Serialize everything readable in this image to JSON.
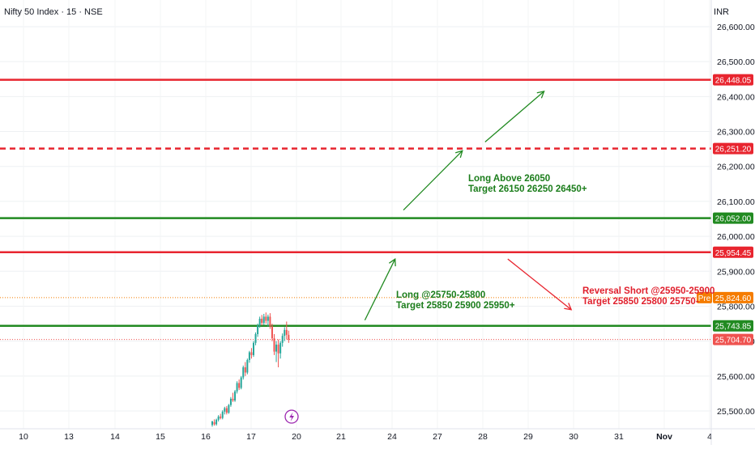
{
  "header": {
    "symbol": "Nifty 50 Index · 15 · NSE",
    "currency": "INR"
  },
  "colors": {
    "red_level": "#e8252f",
    "green_level": "#218a21",
    "pre_level": "#f57c00",
    "candle_up": "#26a69a",
    "candle_down": "#ef5350",
    "annotation_green": "#1b7d1b",
    "annotation_red": "#e0202d"
  },
  "annotations": {
    "long_above": {
      "line1": "Long Above 26050",
      "line2": "Target 26150 26250 26450+"
    },
    "long_range": {
      "line1": "Long @25750-25800",
      "line2": "Target 25850 25900 25950+"
    },
    "reversal": {
      "line1": "Reversal Short @25950-25900",
      "line2": "Target 25850 25800 25750-"
    }
  },
  "badges": {
    "pre": "Pre"
  },
  "chart_data": {
    "type": "candlestick",
    "price_axis": {
      "ylim": [
        25460,
        26650
      ],
      "ticks": [
        25500,
        25600,
        25700,
        25800,
        25900,
        26000,
        26100,
        26200,
        26300,
        26400,
        26500,
        26600
      ],
      "tick_labels": [
        "25,500.00",
        "25,600.00",
        "25,700.00",
        "25,800.00",
        "25,900.00",
        "26,000.00",
        "26,100.00",
        "26,200.00",
        "26,300.00",
        "26,400.00",
        "26,500.00",
        "26,600.00"
      ]
    },
    "time_axis": {
      "labels": [
        "10",
        "13",
        "14",
        "15",
        "16",
        "17",
        "20",
        "21",
        "24",
        "27",
        "28",
        "29",
        "30",
        "31",
        "Nov",
        "4"
      ]
    },
    "levels": [
      {
        "price": 26448.05,
        "label": "26,448.05",
        "style": "solid",
        "color": "red"
      },
      {
        "price": 26251.2,
        "label": "26,251.20",
        "style": "dashed",
        "color": "red"
      },
      {
        "price": 26052.0,
        "label": "26,052.00",
        "style": "solid",
        "color": "green"
      },
      {
        "price": 25954.45,
        "label": "25,954.45",
        "style": "solid",
        "color": "red"
      },
      {
        "price": 25824.6,
        "label": "25,824.60",
        "style": "dotted",
        "color": "pre"
      },
      {
        "price": 25743.85,
        "label": "25,743.85",
        "style": "solid",
        "color": "green"
      },
      {
        "price": 25704.7,
        "label": "25,704.70",
        "style": "dotted",
        "color": "last"
      }
    ],
    "candles": [
      [
        25460,
        25472,
        25455,
        25470
      ],
      [
        25468,
        25476,
        25458,
        25462
      ],
      [
        25462,
        25478,
        25458,
        25475
      ],
      [
        25475,
        25488,
        25470,
        25484
      ],
      [
        25484,
        25492,
        25476,
        25480
      ],
      [
        25480,
        25502,
        25476,
        25498
      ],
      [
        25498,
        25512,
        25490,
        25508
      ],
      [
        25508,
        25514,
        25490,
        25495
      ],
      [
        25495,
        25520,
        25492,
        25517
      ],
      [
        25517,
        25540,
        25512,
        25535
      ],
      [
        25535,
        25552,
        25526,
        25530
      ],
      [
        25530,
        25560,
        25526,
        25556
      ],
      [
        25556,
        25585,
        25550,
        25580
      ],
      [
        25580,
        25590,
        25560,
        25566
      ],
      [
        25566,
        25600,
        25562,
        25596
      ],
      [
        25596,
        25630,
        25590,
        25625
      ],
      [
        25625,
        25640,
        25600,
        25610
      ],
      [
        25610,
        25650,
        25605,
        25646
      ],
      [
        25646,
        25672,
        25638,
        25668
      ],
      [
        25668,
        25680,
        25650,
        25660
      ],
      [
        25660,
        25700,
        25655,
        25695
      ],
      [
        25695,
        25725,
        25688,
        25720
      ],
      [
        25720,
        25750,
        25712,
        25745
      ],
      [
        25745,
        25770,
        25738,
        25764
      ],
      [
        25764,
        25775,
        25745,
        25752
      ],
      [
        25752,
        25778,
        25746,
        25770
      ],
      [
        25770,
        25782,
        25750,
        25758
      ],
      [
        25758,
        25776,
        25742,
        25770
      ],
      [
        25770,
        25780,
        25735,
        25742
      ],
      [
        25742,
        25750,
        25700,
        25708
      ],
      [
        25708,
        25720,
        25660,
        25670
      ],
      [
        25670,
        25700,
        25640,
        25690
      ],
      [
        25690,
        25705,
        25625,
        25665
      ],
      [
        25665,
        25700,
        25650,
        25695
      ],
      [
        25695,
        25722,
        25684,
        25715
      ],
      [
        25715,
        25740,
        25700,
        25732
      ],
      [
        25732,
        25756,
        25705,
        25718
      ],
      [
        25718,
        25730,
        25695,
        25704
      ]
    ],
    "arrows": [
      {
        "from_time": 22.4,
        "from_price": 25760,
        "to_time": 24.2,
        "to_price": 25935,
        "color": "green"
      },
      {
        "from_time": 24.75,
        "from_price": 26075,
        "to_time": 27.55,
        "to_price": 26245,
        "color": "green"
      },
      {
        "from_time": 28.05,
        "from_price": 26270,
        "to_time": 29.35,
        "to_price": 26415,
        "color": "green"
      },
      {
        "from_time": 28.55,
        "from_price": 25935,
        "to_time": 29.95,
        "to_price": 25790,
        "color": "red"
      }
    ]
  }
}
